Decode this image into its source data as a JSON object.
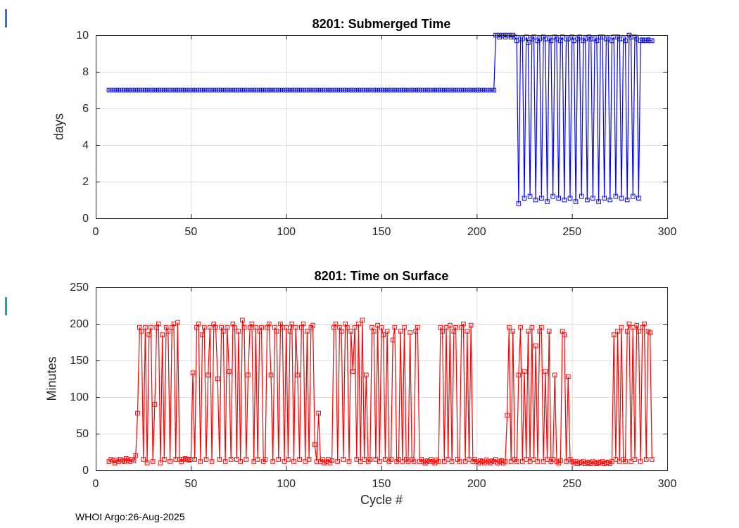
{
  "figure": {
    "footer": "WHOI Argo:26-Aug-2025",
    "background": "#ffffff",
    "grid_color": "#dcdcdc",
    "axes_color": "#262626"
  },
  "chart_data": [
    {
      "id": "submerged-time",
      "type": "line",
      "title": "8201: Submerged Time",
      "xlabel": "",
      "ylabel": "days",
      "xlim": [
        0,
        300
      ],
      "ylim": [
        0,
        10
      ],
      "xticks": [
        0,
        50,
        100,
        150,
        200,
        250,
        300
      ],
      "yticks": [
        0,
        2,
        4,
        6,
        8,
        10
      ],
      "grid": true,
      "legend": "none",
      "line_color": "#0000ff",
      "marker": "open-square",
      "x_start": 7,
      "x_step": 1,
      "values": [
        7,
        7,
        7,
        7,
        7,
        7,
        7,
        7,
        7,
        7,
        7,
        7,
        7,
        7,
        7,
        7,
        7,
        7,
        7,
        7,
        7,
        7,
        7,
        7,
        7,
        7,
        7,
        7,
        7,
        7,
        7,
        7,
        7,
        7,
        7,
        7,
        7,
        7,
        7,
        7,
        7,
        7,
        7,
        7,
        7,
        7,
        7,
        7,
        7,
        7,
        7,
        7,
        7,
        7,
        7,
        7,
        7,
        7,
        7,
        7,
        7,
        7,
        7,
        7,
        7,
        7,
        7,
        7,
        7,
        7,
        7,
        7,
        7,
        7,
        7,
        7,
        7,
        7,
        7,
        7,
        7,
        7,
        7,
        7,
        7,
        7,
        7,
        7,
        7,
        7,
        7,
        7,
        7,
        7,
        7,
        7,
        7,
        7,
        7,
        7,
        7,
        7,
        7,
        7,
        7,
        7,
        7,
        7,
        7,
        7,
        7,
        7,
        7,
        7,
        7,
        7,
        7,
        7,
        7,
        7,
        7,
        7,
        7,
        7,
        7,
        7,
        7,
        7,
        7,
        7,
        7,
        7,
        7,
        7,
        7,
        7,
        7,
        7,
        7,
        7,
        7,
        7,
        7,
        7,
        7,
        7,
        7,
        7,
        7,
        7,
        7,
        7,
        7,
        7,
        7,
        7,
        7,
        7,
        7,
        7,
        7,
        7,
        7,
        7,
        7,
        7,
        7,
        7,
        7,
        7,
        7,
        7,
        7,
        7,
        7,
        7,
        7,
        7,
        7,
        7,
        7,
        7,
        7,
        7,
        7,
        7,
        7,
        7,
        7,
        7,
        7,
        7,
        7,
        7,
        7,
        7,
        7,
        7,
        7,
        7,
        7,
        7,
        7,
        10,
        10,
        9.9,
        10,
        10,
        9.9,
        10,
        10,
        9.9,
        10,
        9.9,
        9.7,
        0.8,
        9.8,
        9.8,
        1.1,
        9.9,
        9.6,
        1.2,
        9.8,
        9.9,
        1.0,
        9.7,
        9.8,
        1.1,
        9.9,
        9.8,
        0.9,
        9.8,
        9.7,
        1.2,
        9.9,
        9.8,
        1.1,
        9.7,
        9.9,
        1.0,
        9.8,
        9.8,
        1.1,
        9.9,
        9.7,
        0.9,
        9.8,
        9.9,
        1.2,
        9.7,
        9.8,
        1.0,
        9.9,
        9.8,
        1.1,
        9.8,
        9.7,
        0.9,
        9.9,
        9.9,
        1.1,
        9.8,
        9.8,
        1.0,
        9.7,
        9.9,
        1.2,
        9.9,
        9.8,
        1.1,
        9.8,
        9.7,
        1.0,
        10,
        9.9,
        1.2,
        9.9,
        9.8,
        1.1,
        9.7,
        9.75,
        9.7,
        9.7,
        9.75,
        9.7,
        9.7
      ]
    },
    {
      "id": "time-on-surface",
      "type": "line",
      "title": "8201: Time on Surface",
      "xlabel": "Cycle #",
      "ylabel": "Minutes",
      "xlim": [
        0,
        300
      ],
      "ylim": [
        0,
        250
      ],
      "xticks": [
        0,
        50,
        100,
        150,
        200,
        250,
        300
      ],
      "yticks": [
        0,
        50,
        100,
        150,
        200,
        250
      ],
      "grid": true,
      "legend": "none",
      "line_color": "#ff0000",
      "marker": "open-square",
      "x_start": 7,
      "x_step": 1,
      "values": [
        12,
        15,
        13,
        10,
        14,
        12,
        15,
        13,
        12,
        16,
        14,
        12,
        15,
        13,
        20,
        78,
        195,
        190,
        15,
        195,
        10,
        185,
        195,
        12,
        90,
        195,
        200,
        10,
        185,
        15,
        195,
        190,
        12,
        195,
        200,
        15,
        202,
        15,
        12,
        15,
        16,
        15,
        14,
        15,
        133,
        15,
        195,
        200,
        12,
        185,
        195,
        15,
        130,
        195,
        12,
        200,
        195,
        125,
        15,
        195,
        190,
        12,
        195,
        135,
        15,
        200,
        195,
        15,
        190,
        12,
        205,
        195,
        15,
        130,
        195,
        200,
        12,
        195,
        15,
        190,
        195,
        12,
        15,
        195,
        200,
        130,
        12,
        195,
        190,
        15,
        200,
        195,
        12,
        195,
        15,
        190,
        200,
        12,
        195,
        130,
        15,
        195,
        200,
        12,
        190,
        15,
        195,
        198,
        35,
        12,
        78,
        12,
        15,
        10,
        12,
        15,
        10,
        13,
        195,
        200,
        12,
        195,
        190,
        15,
        200,
        195,
        12,
        190,
        135,
        195,
        15,
        200,
        12,
        205,
        15,
        130,
        12,
        15,
        195,
        190,
        15,
        198,
        12,
        195,
        185,
        15,
        190,
        12,
        15,
        178,
        195,
        12,
        15,
        190,
        12,
        195,
        15,
        12,
        188,
        15,
        12,
        190,
        195,
        12,
        15,
        12,
        10,
        13,
        12,
        15,
        12,
        10,
        14,
        12,
        195,
        190,
        12,
        195,
        15,
        198,
        12,
        190,
        195,
        15,
        12,
        195,
        200,
        12,
        190,
        15,
        198,
        12,
        15,
        12,
        10,
        13,
        12,
        10,
        14,
        12,
        10,
        13,
        12,
        15,
        10,
        12,
        13,
        10,
        12,
        75,
        195,
        12,
        190,
        15,
        12,
        130,
        195,
        12,
        135,
        15,
        190,
        12,
        195,
        15,
        170,
        12,
        190,
        195,
        12,
        135,
        15,
        190,
        12,
        15,
        130,
        12,
        10,
        13,
        190,
        185,
        12,
        128,
        15,
        12,
        10,
        12,
        9,
        11,
        10,
        12,
        9,
        11,
        10,
        9,
        12,
        10,
        9,
        11,
        10,
        12,
        9,
        10,
        11,
        9,
        12,
        185,
        15,
        190,
        12,
        195,
        15,
        12,
        190,
        200,
        12,
        195,
        15,
        198,
        190,
        12,
        195,
        200,
        15,
        190,
        188,
        15
      ]
    }
  ]
}
